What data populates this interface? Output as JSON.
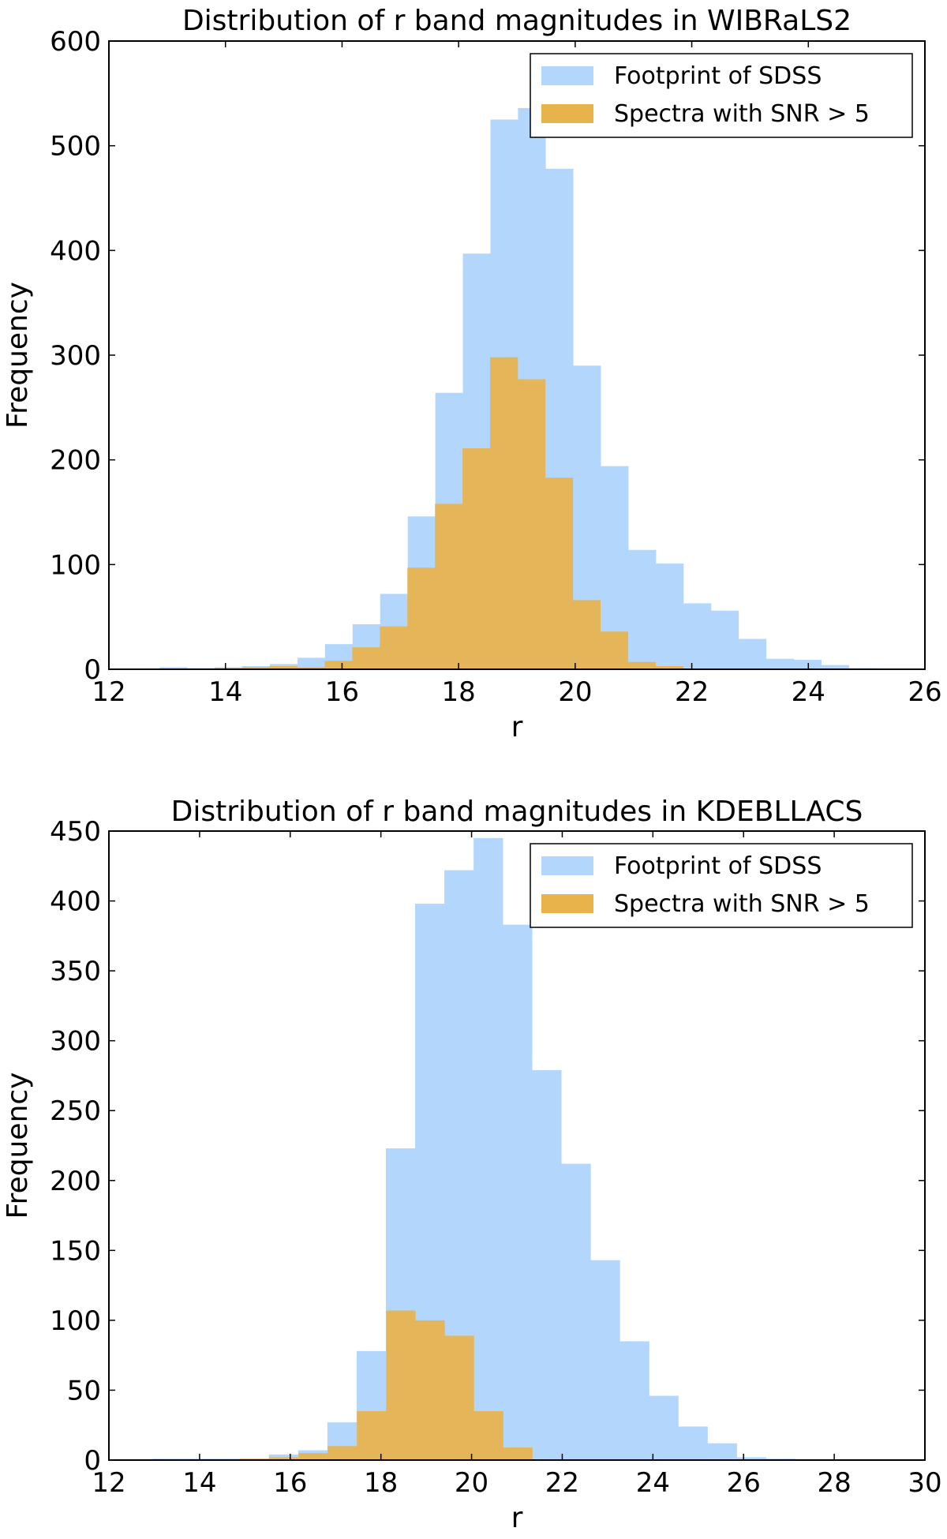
{
  "chart_data": [
    {
      "type": "bar",
      "subtype": "overlaid histogram",
      "title": "Distribution of r band magnitudes in WIBRaLS2",
      "xlabel": "r",
      "ylabel": "Frequency",
      "xlim": [
        12,
        26
      ],
      "ylim": [
        0,
        600
      ],
      "xticks": [
        12,
        14,
        16,
        18,
        20,
        22,
        24,
        26
      ],
      "yticks": [
        0,
        100,
        200,
        300,
        400,
        500,
        600
      ],
      "legend_position": "top-right",
      "series": [
        {
          "name": "Footprint of SDSS",
          "color": "#b3d7fc",
          "bin_start": 12.87,
          "bin_width": 0.473,
          "values": [
            2,
            1,
            2,
            3,
            5,
            11,
            24,
            43,
            72,
            146,
            264,
            397,
            525,
            536,
            478,
            290,
            194,
            114,
            101,
            63,
            56,
            29,
            10,
            9,
            4,
            1,
            0
          ]
        },
        {
          "name": "Spectra with SNR > 5",
          "color": "#e8b34b",
          "bin_start": 13.81,
          "bin_width": 0.473,
          "values": [
            1,
            2,
            3,
            2,
            8,
            21,
            41,
            97,
            158,
            211,
            298,
            277,
            183,
            66,
            36,
            7,
            3,
            0
          ]
        }
      ]
    },
    {
      "type": "bar",
      "subtype": "overlaid histogram",
      "title": "Distribution of r band magnitudes in KDEBLLACS",
      "xlabel": "r",
      "ylabel": "Frequency",
      "xlim": [
        12,
        30
      ],
      "ylim": [
        0,
        450
      ],
      "xticks": [
        12,
        14,
        16,
        18,
        20,
        22,
        24,
        26,
        28,
        30
      ],
      "yticks": [
        0,
        50,
        100,
        150,
        200,
        250,
        300,
        350,
        400,
        450
      ],
      "legend_position": "top-right",
      "series": [
        {
          "name": "Footprint of SDSS",
          "color": "#b3d7fc",
          "bin_start": 12.95,
          "bin_width": 0.645,
          "values": [
            1,
            1,
            1,
            1,
            4,
            7,
            27,
            78,
            223,
            398,
            422,
            445,
            383,
            279,
            212,
            143,
            85,
            46,
            24,
            12,
            2,
            1,
            0,
            0,
            0,
            0
          ]
        },
        {
          "name": "Spectra with SNR > 5",
          "color": "#e8b34b",
          "bin_start": 13.6,
          "bin_width": 0.645,
          "values": [
            0,
            0,
            1,
            2,
            5,
            10,
            35,
            107,
            100,
            89,
            35,
            9,
            0
          ]
        }
      ]
    }
  ]
}
